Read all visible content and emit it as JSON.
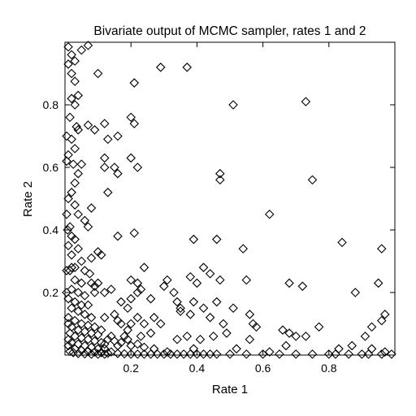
{
  "chart_data": {
    "type": "scatter",
    "title": "Bivariate output of MCMC sampler, rates 1 and 2",
    "xlabel": "Rate 1",
    "ylabel": "Rate 2",
    "xlim": [
      0,
      1
    ],
    "ylim": [
      0,
      1
    ],
    "x_ticks": [
      0.2,
      0.4,
      0.6,
      0.8
    ],
    "y_ticks": [
      0.2,
      0.4,
      0.6,
      0.8
    ],
    "x_tick_labels": [
      "0.2",
      "0.4",
      "0.6",
      "0.8"
    ],
    "y_tick_labels": [
      "0.2",
      "0.4",
      "0.6",
      "0.8"
    ],
    "marker": "open-diamond",
    "grid": false,
    "points": [
      [
        0.01,
        0.985
      ],
      [
        0.02,
        0.96
      ],
      [
        0.05,
        0.975
      ],
      [
        0.07,
        0.99
      ],
      [
        0.01,
        0.93
      ],
      [
        0.03,
        0.94
      ],
      [
        0.02,
        0.9
      ],
      [
        0.03,
        0.875
      ],
      [
        0.1,
        0.9
      ],
      [
        0.02,
        0.82
      ],
      [
        0.04,
        0.83
      ],
      [
        0.03,
        0.8
      ],
      [
        0.015,
        0.76
      ],
      [
        0.035,
        0.73
      ],
      [
        0.04,
        0.72
      ],
      [
        0.07,
        0.735
      ],
      [
        0.09,
        0.72
      ],
      [
        0.02,
        0.69
      ],
      [
        0.03,
        0.66
      ],
      [
        0.01,
        0.64
      ],
      [
        0.025,
        0.61
      ],
      [
        0.05,
        0.61
      ],
      [
        0.04,
        0.58
      ],
      [
        0.03,
        0.55
      ],
      [
        0.02,
        0.52
      ],
      [
        0.01,
        0.5
      ],
      [
        0.03,
        0.48
      ],
      [
        0.04,
        0.45
      ],
      [
        0.06,
        0.43
      ],
      [
        0.015,
        0.41
      ],
      [
        0.02,
        0.38
      ],
      [
        0.03,
        0.37
      ],
      [
        0.01,
        0.35
      ],
      [
        0.04,
        0.34
      ],
      [
        0.05,
        0.3
      ],
      [
        0.02,
        0.32
      ],
      [
        0.03,
        0.28
      ],
      [
        0.06,
        0.27
      ],
      [
        0.075,
        0.26
      ],
      [
        0.03,
        0.24
      ],
      [
        0.05,
        0.23
      ],
      [
        0.08,
        0.23
      ],
      [
        0.09,
        0.22
      ],
      [
        0.02,
        0.21
      ],
      [
        0.04,
        0.2
      ],
      [
        0.06,
        0.19
      ],
      [
        0.03,
        0.17
      ],
      [
        0.05,
        0.16
      ],
      [
        0.07,
        0.16
      ],
      [
        0.02,
        0.15
      ],
      [
        0.04,
        0.14
      ],
      [
        0.06,
        0.13
      ],
      [
        0.08,
        0.12
      ],
      [
        0.01,
        0.12
      ],
      [
        0.03,
        0.11
      ],
      [
        0.05,
        0.1
      ],
      [
        0.07,
        0.095
      ],
      [
        0.09,
        0.09
      ],
      [
        0.02,
        0.09
      ],
      [
        0.04,
        0.08
      ],
      [
        0.06,
        0.075
      ],
      [
        0.08,
        0.07
      ],
      [
        0.1,
        0.065
      ],
      [
        0.015,
        0.07
      ],
      [
        0.03,
        0.06
      ],
      [
        0.05,
        0.055
      ],
      [
        0.07,
        0.05
      ],
      [
        0.09,
        0.045
      ],
      [
        0.11,
        0.04
      ],
      [
        0.01,
        0.05
      ],
      [
        0.02,
        0.04
      ],
      [
        0.04,
        0.035
      ],
      [
        0.06,
        0.03
      ],
      [
        0.08,
        0.025
      ],
      [
        0.1,
        0.02
      ],
      [
        0.12,
        0.02
      ],
      [
        0.01,
        0.03
      ],
      [
        0.03,
        0.02
      ],
      [
        0.05,
        0.015
      ],
      [
        0.07,
        0.012
      ],
      [
        0.09,
        0.01
      ],
      [
        0.11,
        0.008
      ],
      [
        0.13,
        0.006
      ],
      [
        0.015,
        0.012
      ],
      [
        0.025,
        0.008
      ],
      [
        0.04,
        0.005
      ],
      [
        0.06,
        0.004
      ],
      [
        0.08,
        0.003
      ],
      [
        0.1,
        0.003
      ],
      [
        0.12,
        0.003
      ],
      [
        0.005,
        0.2
      ],
      [
        0.005,
        0.27
      ],
      [
        0.005,
        0.45
      ],
      [
        0.005,
        0.7
      ],
      [
        0.005,
        0.62
      ],
      [
        0.015,
        0.27
      ],
      [
        0.01,
        0.1
      ],
      [
        0.01,
        0.18
      ],
      [
        0.02,
        0.28
      ],
      [
        0.008,
        0.4
      ],
      [
        0.12,
        0.035
      ],
      [
        0.13,
        0.05
      ],
      [
        0.14,
        0.06
      ],
      [
        0.15,
        0.045
      ],
      [
        0.16,
        0.03
      ],
      [
        0.17,
        0.04
      ],
      [
        0.18,
        0.06
      ],
      [
        0.19,
        0.05
      ],
      [
        0.2,
        0.03
      ],
      [
        0.22,
        0.035
      ],
      [
        0.24,
        0.025
      ],
      [
        0.14,
        0.01
      ],
      [
        0.16,
        0.005
      ],
      [
        0.18,
        0.004
      ],
      [
        0.2,
        0.003
      ],
      [
        0.22,
        0.003
      ],
      [
        0.24,
        0.003
      ],
      [
        0.26,
        0.003
      ],
      [
        0.28,
        0.003
      ],
      [
        0.3,
        0.003
      ],
      [
        0.32,
        0.003
      ],
      [
        0.34,
        0.003
      ],
      [
        0.36,
        0.003
      ],
      [
        0.38,
        0.003
      ],
      [
        0.4,
        0.003
      ],
      [
        0.42,
        0.003
      ],
      [
        0.44,
        0.003
      ],
      [
        0.46,
        0.003
      ],
      [
        0.5,
        0.003
      ],
      [
        0.55,
        0.003
      ],
      [
        0.6,
        0.003
      ],
      [
        0.65,
        0.003
      ],
      [
        0.7,
        0.003
      ],
      [
        0.75,
        0.003
      ],
      [
        0.8,
        0.003
      ],
      [
        0.82,
        0.003
      ],
      [
        0.86,
        0.003
      ],
      [
        0.9,
        0.003
      ],
      [
        0.92,
        0.003
      ],
      [
        0.96,
        0.003
      ],
      [
        0.99,
        0.003
      ],
      [
        0.12,
        0.74
      ],
      [
        0.13,
        0.69
      ],
      [
        0.16,
        0.7
      ],
      [
        0.2,
        0.76
      ],
      [
        0.21,
        0.74
      ],
      [
        0.21,
        0.87
      ],
      [
        0.29,
        0.92
      ],
      [
        0.37,
        0.92
      ],
      [
        0.51,
        0.8
      ],
      [
        0.73,
        0.81
      ],
      [
        0.12,
        0.63
      ],
      [
        0.12,
        0.6
      ],
      [
        0.15,
        0.6
      ],
      [
        0.16,
        0.58
      ],
      [
        0.2,
        0.63
      ],
      [
        0.22,
        0.6
      ],
      [
        0.13,
        0.52
      ],
      [
        0.47,
        0.58
      ],
      [
        0.47,
        0.56
      ],
      [
        0.75,
        0.56
      ],
      [
        0.62,
        0.45
      ],
      [
        0.08,
        0.47
      ],
      [
        0.07,
        0.41
      ],
      [
        0.16,
        0.38
      ],
      [
        0.21,
        0.39
      ],
      [
        0.39,
        0.37
      ],
      [
        0.46,
        0.37
      ],
      [
        0.54,
        0.34
      ],
      [
        0.84,
        0.36
      ],
      [
        0.96,
        0.34
      ],
      [
        0.1,
        0.33
      ],
      [
        0.11,
        0.32
      ],
      [
        0.08,
        0.31
      ],
      [
        0.24,
        0.28
      ],
      [
        0.42,
        0.28
      ],
      [
        0.44,
        0.26
      ],
      [
        0.38,
        0.25
      ],
      [
        0.31,
        0.24
      ],
      [
        0.3,
        0.22
      ],
      [
        0.4,
        0.23
      ],
      [
        0.47,
        0.24
      ],
      [
        0.55,
        0.24
      ],
      [
        0.68,
        0.23
      ],
      [
        0.72,
        0.22
      ],
      [
        0.88,
        0.2
      ],
      [
        0.95,
        0.23
      ],
      [
        0.2,
        0.24
      ],
      [
        0.22,
        0.23
      ],
      [
        0.23,
        0.21
      ],
      [
        0.22,
        0.2
      ],
      [
        0.1,
        0.23
      ],
      [
        0.09,
        0.2
      ],
      [
        0.12,
        0.2
      ],
      [
        0.14,
        0.21
      ],
      [
        0.2,
        0.18
      ],
      [
        0.17,
        0.17
      ],
      [
        0.19,
        0.15
      ],
      [
        0.26,
        0.18
      ],
      [
        0.33,
        0.2
      ],
      [
        0.34,
        0.17
      ],
      [
        0.35,
        0.15
      ],
      [
        0.35,
        0.14
      ],
      [
        0.39,
        0.17
      ],
      [
        0.42,
        0.15
      ],
      [
        0.46,
        0.17
      ],
      [
        0.51,
        0.15
      ],
      [
        0.15,
        0.13
      ],
      [
        0.16,
        0.11
      ],
      [
        0.17,
        0.1
      ],
      [
        0.12,
        0.12
      ],
      [
        0.11,
        0.08
      ],
      [
        0.2,
        0.1
      ],
      [
        0.22,
        0.12
      ],
      [
        0.24,
        0.1
      ],
      [
        0.27,
        0.12
      ],
      [
        0.29,
        0.1
      ],
      [
        0.38,
        0.13
      ],
      [
        0.44,
        0.12
      ],
      [
        0.48,
        0.1
      ],
      [
        0.56,
        0.13
      ],
      [
        0.57,
        0.1
      ],
      [
        0.58,
        0.09
      ],
      [
        0.49,
        0.07
      ],
      [
        0.45,
        0.06
      ],
      [
        0.41,
        0.05
      ],
      [
        0.37,
        0.06
      ],
      [
        0.34,
        0.05
      ],
      [
        0.26,
        0.07
      ],
      [
        0.23,
        0.06
      ],
      [
        0.19,
        0.08
      ],
      [
        0.66,
        0.08
      ],
      [
        0.68,
        0.07
      ],
      [
        0.7,
        0.06
      ],
      [
        0.73,
        0.06
      ],
      [
        0.77,
        0.09
      ],
      [
        0.93,
        0.09
      ],
      [
        0.97,
        0.13
      ],
      [
        0.96,
        0.11
      ],
      [
        0.91,
        0.06
      ],
      [
        0.87,
        0.03
      ],
      [
        0.83,
        0.02
      ],
      [
        0.67,
        0.03
      ],
      [
        0.62,
        0.01
      ],
      [
        0.56,
        0.05
      ],
      [
        0.52,
        0.02
      ],
      [
        0.39,
        0.02
      ],
      [
        0.31,
        0.01
      ],
      [
        0.27,
        0.02
      ],
      [
        0.93,
        0.02
      ],
      [
        0.97,
        0.01
      ]
    ]
  }
}
